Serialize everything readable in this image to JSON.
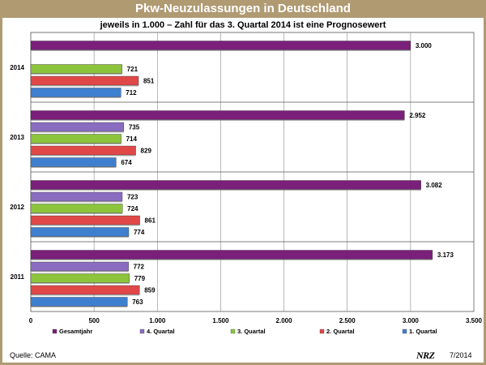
{
  "title": "Pkw-Neuzulassungen in Deutschland",
  "subtitle": "jeweils in 1.000 – Zahl für das 3. Quartal 2014 ist eine Prognosewert",
  "source": "Quelle: CAMA",
  "brand": "NRZ",
  "date": "7/2014",
  "chart_data": {
    "type": "bar",
    "orientation": "horizontal",
    "categories": [
      "2011",
      "2012",
      "2013",
      "2014"
    ],
    "series": [
      {
        "name": "Gesamtjahr",
        "color": "#7a1f7a",
        "values": [
          3173,
          3082,
          2952,
          3000
        ],
        "labels": [
          "3.173",
          "3.082",
          "2.952",
          "3.000"
        ]
      },
      {
        "name": "4. Quartal",
        "color": "#8a6dc0",
        "values": [
          772,
          723,
          735,
          null
        ],
        "labels": [
          "772",
          "723",
          "735",
          ""
        ]
      },
      {
        "name": "3. Quartal",
        "color": "#8cc43c",
        "values": [
          779,
          724,
          714,
          721
        ],
        "labels": [
          "779",
          "724",
          "714",
          "721"
        ]
      },
      {
        "name": "2. Quartal",
        "color": "#e04848",
        "values": [
          859,
          861,
          829,
          851
        ],
        "labels": [
          "859",
          "861",
          "829",
          "851"
        ]
      },
      {
        "name": "1. Quartal",
        "color": "#3f7fcf",
        "values": [
          763,
          774,
          674,
          712
        ],
        "labels": [
          "763",
          "774",
          "674",
          "712"
        ]
      }
    ],
    "xlim": [
      0,
      3500
    ],
    "xticks": [
      0,
      500,
      1000,
      1500,
      2000,
      2500,
      3000,
      3500
    ],
    "xtick_labels": [
      "0",
      "500",
      "1.000",
      "1.500",
      "2.000",
      "2.500",
      "3.000",
      "3.500"
    ],
    "grid": true,
    "legend_position": "bottom"
  }
}
